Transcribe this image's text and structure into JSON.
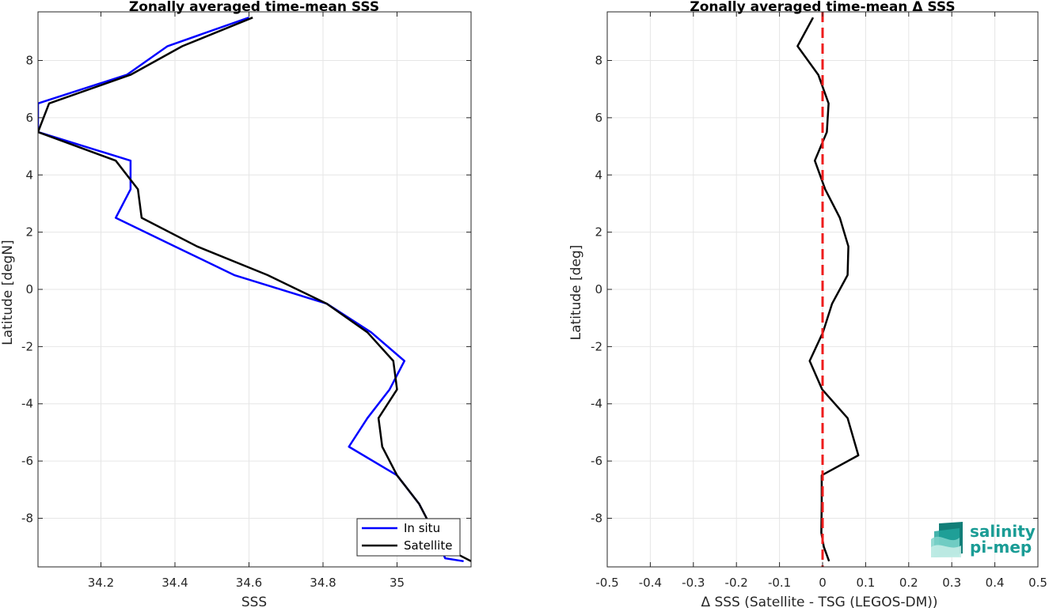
{
  "chart_data": [
    {
      "type": "line",
      "title": "Zonally averaged time-mean SSS",
      "xlabel": "SSS",
      "ylabel": "Latitude [degN]",
      "xlim": [
        34.03,
        35.2
      ],
      "ylim": [
        -9.7,
        9.7
      ],
      "xticks": [
        34.2,
        34.4,
        34.6,
        34.8,
        35
      ],
      "xtick_labels": [
        "34.2",
        "34.4",
        "34.6",
        "34.8",
        "35"
      ],
      "yticks": [
        -8,
        -6,
        -4,
        -2,
        0,
        2,
        4,
        6,
        8
      ],
      "ytick_labels": [
        "-8",
        "-6",
        "-4",
        "-2",
        "0",
        "2",
        "4",
        "6",
        "8"
      ],
      "grid": true,
      "legend": "bottom-right",
      "series": [
        {
          "name": "In situ",
          "color": "#0000ff",
          "points": [
            [
              34.6,
              9.5
            ],
            [
              34.38,
              8.5
            ],
            [
              34.27,
              7.5
            ],
            [
              34.03,
              6.5
            ],
            [
              34.03,
              5.5
            ],
            [
              34.28,
              4.5
            ],
            [
              34.28,
              3.5
            ],
            [
              34.24,
              2.5
            ],
            [
              34.4,
              1.5
            ],
            [
              34.56,
              0.5
            ],
            [
              34.81,
              -0.5
            ],
            [
              34.93,
              -1.5
            ],
            [
              35.02,
              -2.5
            ],
            [
              34.98,
              -3.5
            ],
            [
              34.92,
              -4.5
            ],
            [
              34.87,
              -5.5
            ],
            [
              35.0,
              -6.5
            ],
            [
              35.06,
              -7.5
            ],
            [
              35.1,
              -8.5
            ],
            [
              35.13,
              -9.4
            ],
            [
              35.18,
              -9.5
            ]
          ]
        },
        {
          "name": "Satellite",
          "color": "#000000",
          "points": [
            [
              34.61,
              9.5
            ],
            [
              34.42,
              8.5
            ],
            [
              34.28,
              7.5
            ],
            [
              34.06,
              6.5
            ],
            [
              34.03,
              5.5
            ],
            [
              34.24,
              4.5
            ],
            [
              34.3,
              3.5
            ],
            [
              34.31,
              2.5
            ],
            [
              34.46,
              1.5
            ],
            [
              34.65,
              0.5
            ],
            [
              34.81,
              -0.5
            ],
            [
              34.92,
              -1.5
            ],
            [
              34.99,
              -2.5
            ],
            [
              35.0,
              -3.5
            ],
            [
              34.95,
              -4.5
            ],
            [
              34.96,
              -5.5
            ],
            [
              35.0,
              -6.5
            ],
            [
              35.06,
              -7.5
            ],
            [
              35.1,
              -8.5
            ],
            [
              35.14,
              -9.1
            ],
            [
              35.2,
              -9.5
            ]
          ]
        }
      ]
    },
    {
      "type": "line",
      "title": "Zonally averaged time-mean Δ SSS",
      "xlabel": "Δ SSS (Satellite - TSG (LEGOS-DM))",
      "ylabel": "Latitude [deg]",
      "xlim": [
        -0.5,
        0.5
      ],
      "ylim": [
        -9.7,
        9.7
      ],
      "xticks": [
        -0.5,
        -0.4,
        -0.3,
        -0.2,
        -0.1,
        0,
        0.1,
        0.2,
        0.3,
        0.4,
        0.5
      ],
      "xtick_labels": [
        "-0.5",
        "-0.4",
        "-0.3",
        "-0.2",
        "-0.1",
        "0",
        "0.1",
        "0.2",
        "0.3",
        "0.4",
        "0.5"
      ],
      "yticks": [
        -8,
        -6,
        -4,
        -2,
        0,
        2,
        4,
        6,
        8
      ],
      "ytick_labels": [
        "-8",
        "-6",
        "-4",
        "-2",
        "0",
        "2",
        "4",
        "6",
        "8"
      ],
      "grid": true,
      "reference_line": {
        "x": 0,
        "color": "#ee1c1c",
        "style": "dashed"
      },
      "series": [
        {
          "color": "#000000",
          "points": [
            [
              -0.022,
              9.5
            ],
            [
              -0.058,
              8.5
            ],
            [
              -0.01,
              7.5
            ],
            [
              0.014,
              6.5
            ],
            [
              0.01,
              5.5
            ],
            [
              -0.018,
              4.5
            ],
            [
              0.006,
              3.5
            ],
            [
              0.04,
              2.5
            ],
            [
              0.06,
              1.5
            ],
            [
              0.058,
              0.5
            ],
            [
              0.022,
              -0.5
            ],
            [
              0.001,
              -1.5
            ],
            [
              -0.03,
              -2.5
            ],
            [
              -0.001,
              -3.5
            ],
            [
              0.058,
              -4.5
            ],
            [
              0.083,
              -5.8
            ],
            [
              -0.002,
              -6.5
            ],
            [
              -0.002,
              -7.5
            ],
            [
              -0.003,
              -8.5
            ],
            [
              0.003,
              -9.0
            ],
            [
              0.015,
              -9.5
            ]
          ]
        }
      ]
    }
  ],
  "logo": {
    "line1": "salinity",
    "line2": "pi-mep",
    "color": "#1a9c95"
  }
}
